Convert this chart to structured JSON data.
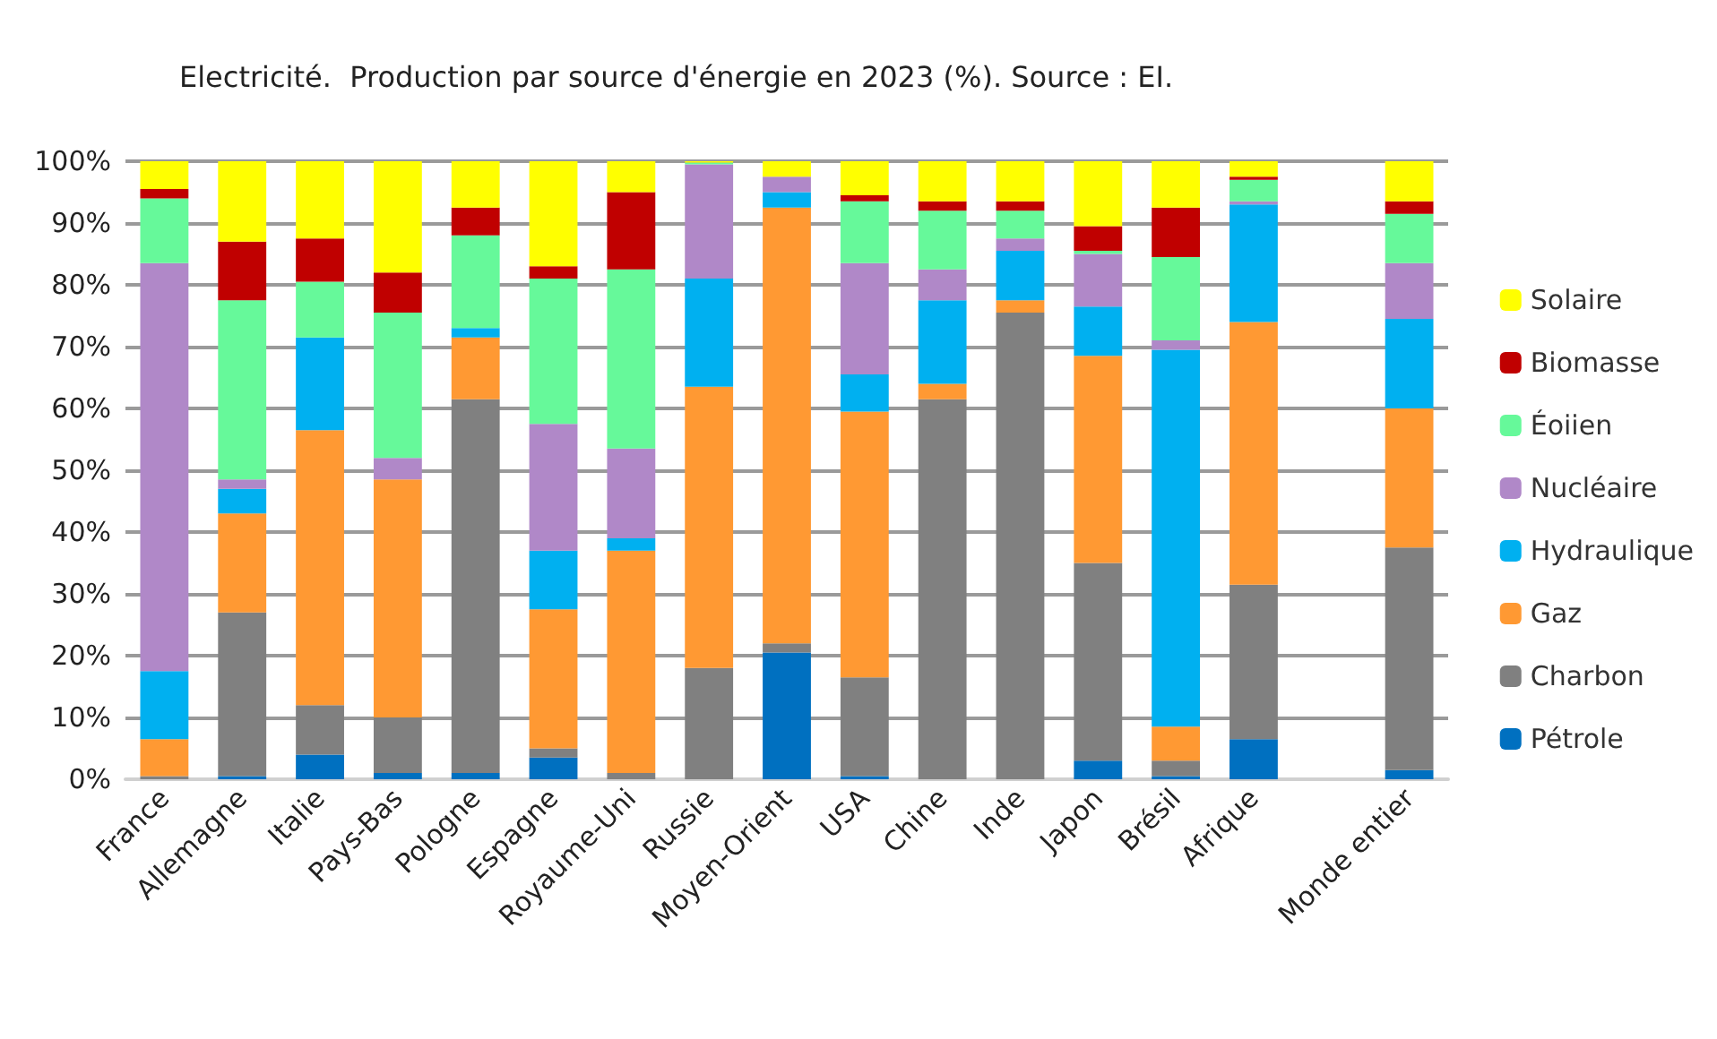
{
  "chart_data": {
    "type": "bar",
    "stacked": true,
    "title": "Electricité.  Production par source d'énergie en 2023 (%). Source : EI.",
    "categories": [
      "France",
      "Allemagne",
      "Italie",
      "Pays-Bas",
      "Pologne",
      "Espagne",
      "Royaume-Uni",
      "Russie",
      "Moyen-Orient",
      "USA",
      "Chine",
      "Inde",
      "Japon",
      "Brésil",
      "Afrique",
      null,
      "Monde entier"
    ],
    "series": [
      {
        "name": "Pétrole",
        "color": "#0070c0",
        "values": [
          0,
          0.5,
          4,
          1,
          1,
          3.5,
          0,
          0,
          20.5,
          0.5,
          0,
          0,
          3,
          0.5,
          6.5,
          null,
          1.5
        ]
      },
      {
        "name": "Charbon",
        "color": "#808080",
        "values": [
          0.5,
          26.5,
          8,
          9,
          60.5,
          1.5,
          1,
          18,
          1.5,
          16,
          61.5,
          75.5,
          32,
          2.5,
          25,
          null,
          36
        ]
      },
      {
        "name": "Gaz",
        "color": "#ff9933",
        "values": [
          6,
          16,
          44.5,
          38.5,
          10,
          22.5,
          36,
          45.5,
          70.5,
          43,
          2.5,
          2,
          33.5,
          5.5,
          42.5,
          null,
          22.5
        ]
      },
      {
        "name": "Hydraulique",
        "color": "#00b0f0",
        "values": [
          11,
          4,
          15,
          0,
          1.5,
          9.5,
          2,
          17.5,
          2.5,
          6,
          13.5,
          8,
          8,
          61,
          19,
          null,
          14.5
        ]
      },
      {
        "name": "Nucléaire",
        "color": "#b088c8",
        "values": [
          66,
          1.5,
          0,
          3.5,
          0,
          20.5,
          14.5,
          18.5,
          2.5,
          18,
          5,
          2,
          8.5,
          1.5,
          0.5,
          null,
          9
        ]
      },
      {
        "name": "Éoiien",
        "color": "#66f99a",
        "values": [
          10.5,
          29,
          9,
          23.5,
          15,
          23.5,
          29,
          0.3,
          0,
          10,
          9.5,
          4.5,
          0.5,
          13.5,
          3.5,
          null,
          8
        ]
      },
      {
        "name": "Biomasse",
        "color": "#c00000",
        "values": [
          1.5,
          9.5,
          7,
          6.5,
          4.5,
          2,
          12.5,
          0,
          0,
          1,
          1.5,
          1.5,
          4,
          8,
          0.5,
          null,
          2
        ]
      },
      {
        "name": "Solaire",
        "color": "#ffff00",
        "values": [
          4.5,
          13,
          12.5,
          18,
          7.5,
          17,
          5,
          0.2,
          2.5,
          5.5,
          6.5,
          6.5,
          10.5,
          7.5,
          2.5,
          null,
          6.5
        ]
      }
    ],
    "ylim": [
      0,
      100
    ],
    "yticks": [
      {
        "value": 0,
        "label": "0%"
      },
      {
        "value": 10,
        "label": "10%"
      },
      {
        "value": 20,
        "label": "20%"
      },
      {
        "value": 30,
        "label": "30%"
      },
      {
        "value": 40,
        "label": "40%"
      },
      {
        "value": 50,
        "label": "50%"
      },
      {
        "value": 60,
        "label": "60%"
      },
      {
        "value": 70,
        "label": "70%"
      },
      {
        "value": 80,
        "label": "80%"
      },
      {
        "value": 90,
        "label": "90%"
      },
      {
        "value": 100,
        "label": "100%"
      }
    ],
    "grid": "y",
    "legend": "right"
  }
}
